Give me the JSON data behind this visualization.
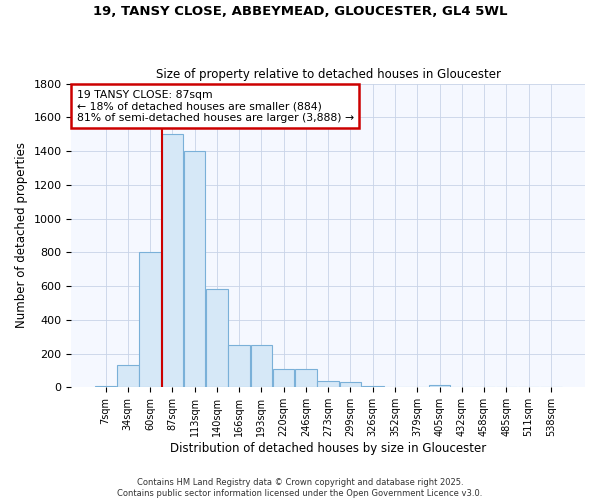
{
  "title1": "19, TANSY CLOSE, ABBEYMEAD, GLOUCESTER, GL4 5WL",
  "title2": "Size of property relative to detached houses in Gloucester",
  "xlabel": "Distribution of detached houses by size in Gloucester",
  "ylabel": "Number of detached properties",
  "bin_labels": [
    "7sqm",
    "34sqm",
    "60sqm",
    "87sqm",
    "113sqm",
    "140sqm",
    "166sqm",
    "193sqm",
    "220sqm",
    "246sqm",
    "273sqm",
    "299sqm",
    "326sqm",
    "352sqm",
    "379sqm",
    "405sqm",
    "432sqm",
    "458sqm",
    "485sqm",
    "511sqm",
    "538sqm"
  ],
  "bar_values": [
    10,
    130,
    800,
    1500,
    1400,
    580,
    250,
    250,
    110,
    110,
    35,
    30,
    10,
    0,
    0,
    15,
    0,
    0,
    0,
    0,
    0
  ],
  "bar_color": "#d6e8f7",
  "bar_edge_color": "#7ab0d8",
  "red_line_index": 3,
  "annotation_line1": "19 TANSY CLOSE: 87sqm",
  "annotation_line2": "← 18% of detached houses are smaller (884)",
  "annotation_line3": "81% of semi-detached houses are larger (3,888) →",
  "annotation_box_color": "#ffffff",
  "annotation_box_edge": "#cc0000",
  "footer1": "Contains HM Land Registry data © Crown copyright and database right 2025.",
  "footer2": "Contains public sector information licensed under the Open Government Licence v3.0.",
  "ylim": [
    0,
    1800
  ],
  "bg_color": "#ffffff",
  "plot_bg_color": "#f5f8ff",
  "grid_color": "#c8d4e8"
}
